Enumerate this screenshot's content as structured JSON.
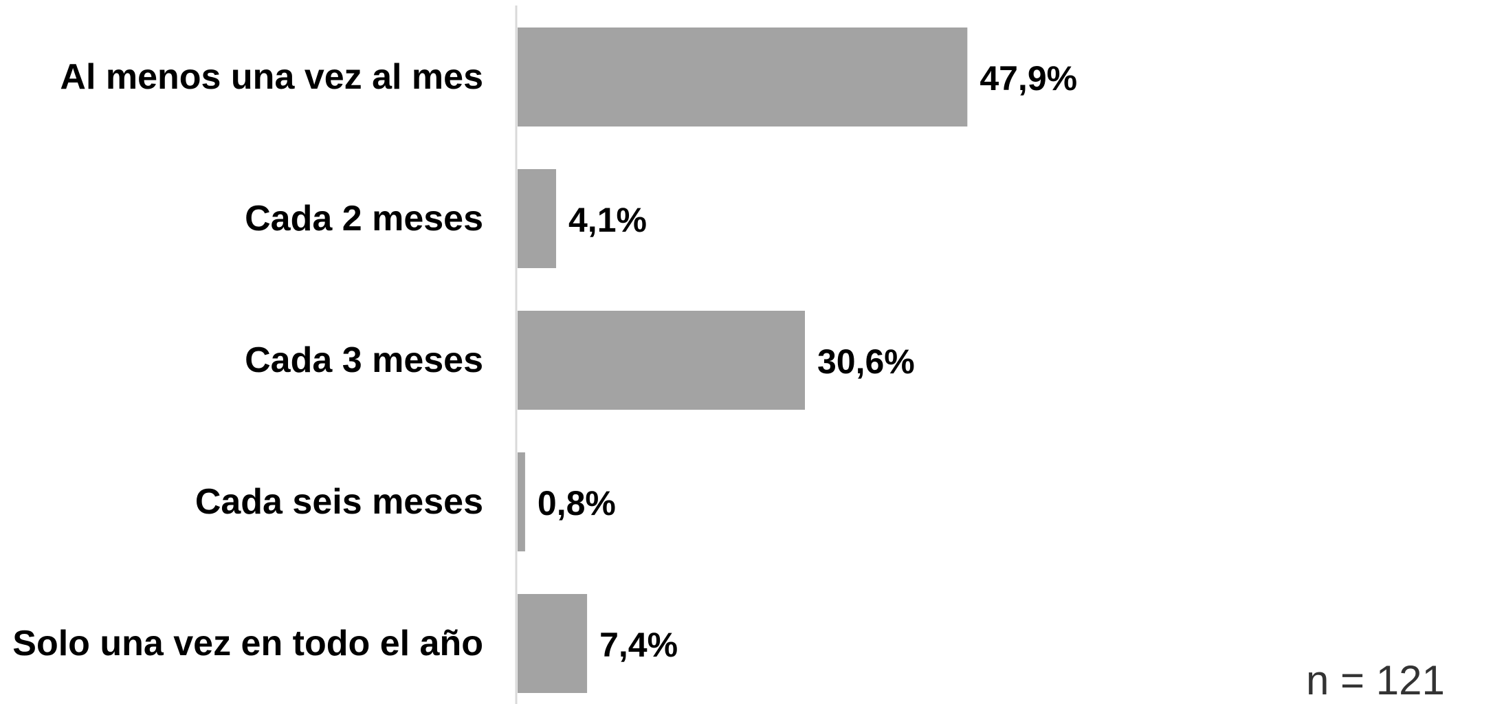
{
  "chart_data": {
    "type": "bar",
    "orientation": "horizontal",
    "categories": [
      "Al menos una vez al mes",
      "Cada 2 meses",
      "Cada 3 meses",
      "Cada seis meses",
      "Solo una vez en todo el año"
    ],
    "values": [
      47.9,
      4.1,
      30.6,
      0.8,
      7.4
    ],
    "value_labels": [
      "47,9%",
      "4,1%",
      "30,6%",
      "0,8%",
      "7,4%"
    ],
    "unit": "%",
    "bar_color": "#a3a3a3",
    "axis_color": "#d9d9d9",
    "xlim": [
      0,
      100
    ],
    "grid": false,
    "legend": "none"
  },
  "note": "n = 121"
}
